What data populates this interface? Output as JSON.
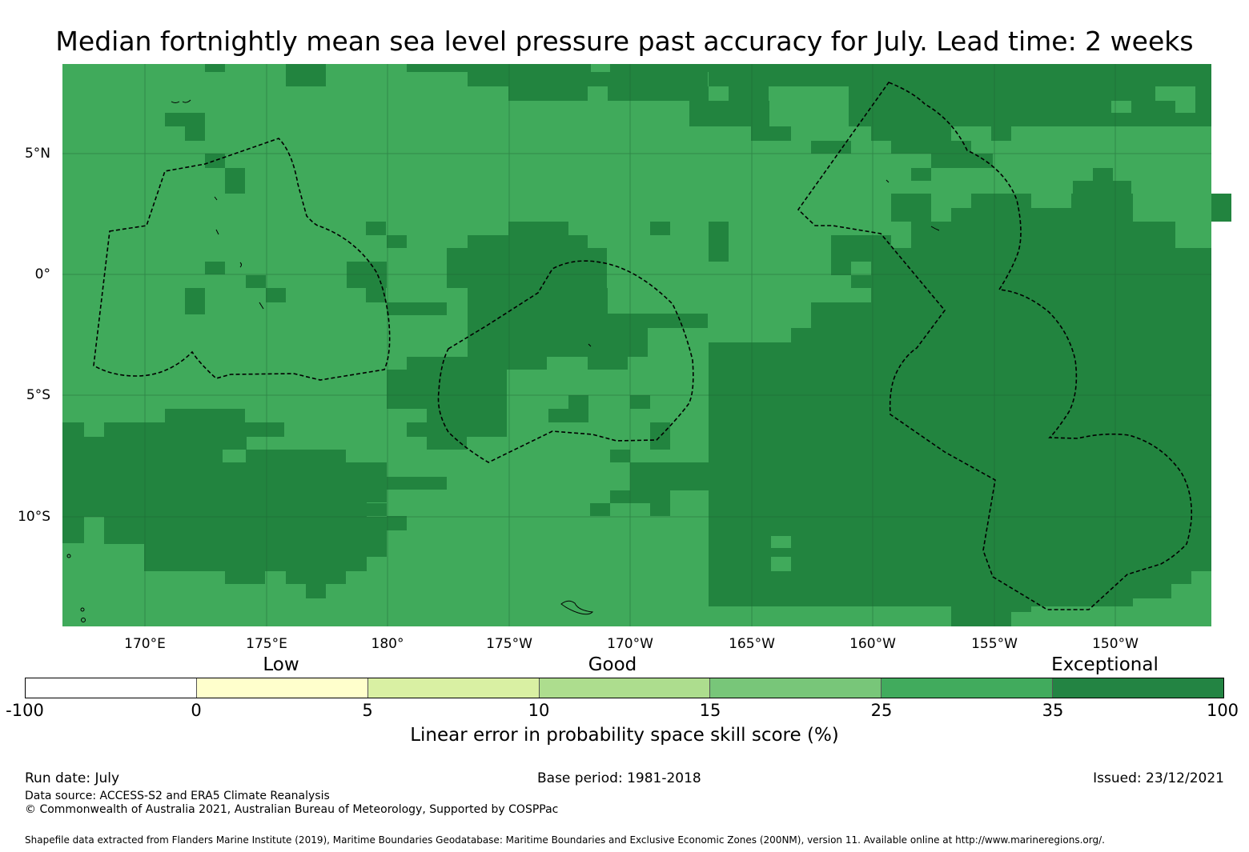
{
  "title": "Median fortnightly mean sea level pressure past accuracy for July. Lead time: 2 weeks",
  "map": {
    "colors": {
      "skill_25_35": "#40aa5b",
      "skill_35_100": "#22843f",
      "grid": "#1f5f33",
      "outline": "#000000"
    },
    "lon_labels": [
      "170°E",
      "175°E",
      "180°",
      "175°W",
      "170°W",
      "165°W",
      "160°W",
      "155°W",
      "150°W"
    ],
    "lat_labels": [
      "5°N",
      "0°",
      "5°S",
      "10°S"
    ]
  },
  "colorbar": {
    "categories": [
      "Low",
      "Good",
      "Exceptional"
    ],
    "ticks": [
      "-100",
      "0",
      "5",
      "10",
      "15",
      "25",
      "35",
      "100"
    ],
    "colors": [
      "#ffffff",
      "#ffffcc",
      "#d9f0a3",
      "#addd8e",
      "#78c679",
      "#41ab5d",
      "#238443"
    ],
    "label": "Linear error in probability space skill score (%)"
  },
  "footer": {
    "run_date": "Run date: July",
    "base_period": "Base period: 1981-2018",
    "issued": "Issued: 23/12/2021",
    "data_source": "Data source: ACCESS-S2 and ERA5 Climate Reanalysis",
    "copyright": "© Commonwealth of Australia 2021, Australian Bureau of Meteorology, Supported by COSPPac",
    "shapefile": "Shapefile data extracted from Flanders Marine Institute (2019), Maritime Boundaries Geodatabase: Maritime Boundaries and Exclusive Economic Zones (200NM), version 11. Available online at http://www.marineregions.org/."
  }
}
